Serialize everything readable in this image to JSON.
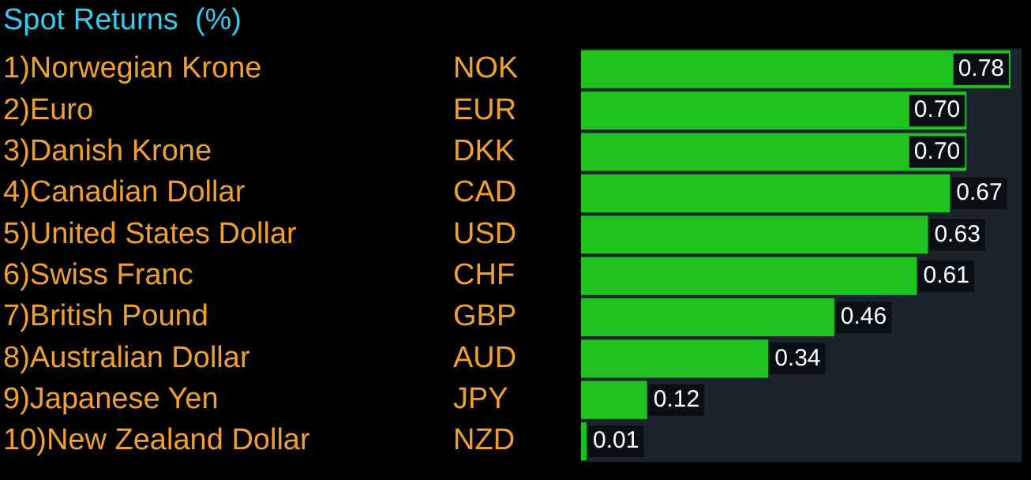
{
  "chart_data": {
    "type": "bar",
    "orientation": "horizontal",
    "title": "Spot Returns  (%)",
    "categories": [
      "1)Norwegian Krone",
      "2)Euro",
      "3)Danish Krone",
      "4)Canadian Dollar",
      "5)United States Dollar",
      "6)Swiss Franc",
      "7)British Pound",
      "8)Australian Dollar",
      "9)Japanese Yen",
      "10)New Zealand Dollar"
    ],
    "y2_categories": [
      "NOK",
      "EUR",
      "DKK",
      "CAD",
      "USD",
      "CHF",
      "GBP",
      "AUD",
      "JPY",
      "NZD"
    ],
    "values": [
      0.78,
      0.7,
      0.7,
      0.67,
      0.63,
      0.61,
      0.46,
      0.34,
      0.12,
      0.01
    ],
    "value_labels": [
      "0.78",
      "0.70",
      "0.70",
      "0.67",
      "0.63",
      "0.61",
      "0.46",
      "0.34",
      "0.12",
      "0.01"
    ],
    "color": "#1fc21f"
  }
}
